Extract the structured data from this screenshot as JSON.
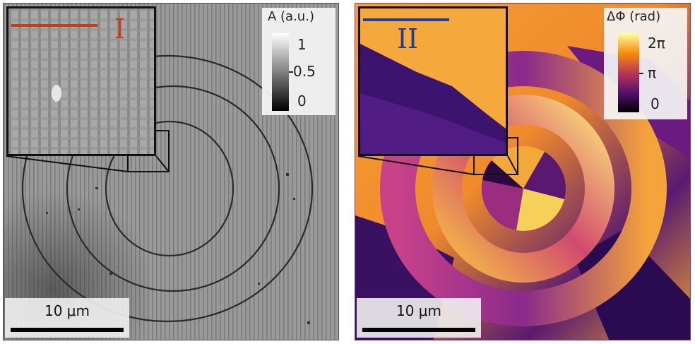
{
  "left_panel": {
    "inset_label": "I",
    "inset_label_color": "#c0401a",
    "colorbar": {
      "title": "A (a.u.)",
      "ticks": [
        "1",
        "0.5",
        "0"
      ],
      "colormap": "gray"
    },
    "scalebar": {
      "label": "10 μm"
    }
  },
  "right_panel": {
    "inset_label": "II",
    "inset_label_color": "#1f3f9a",
    "colorbar": {
      "title": "ΔΦ (rad)",
      "ticks": [
        "2π",
        "π",
        "0"
      ],
      "colormap": "inferno"
    },
    "scalebar": {
      "label": "10 μm"
    }
  }
}
